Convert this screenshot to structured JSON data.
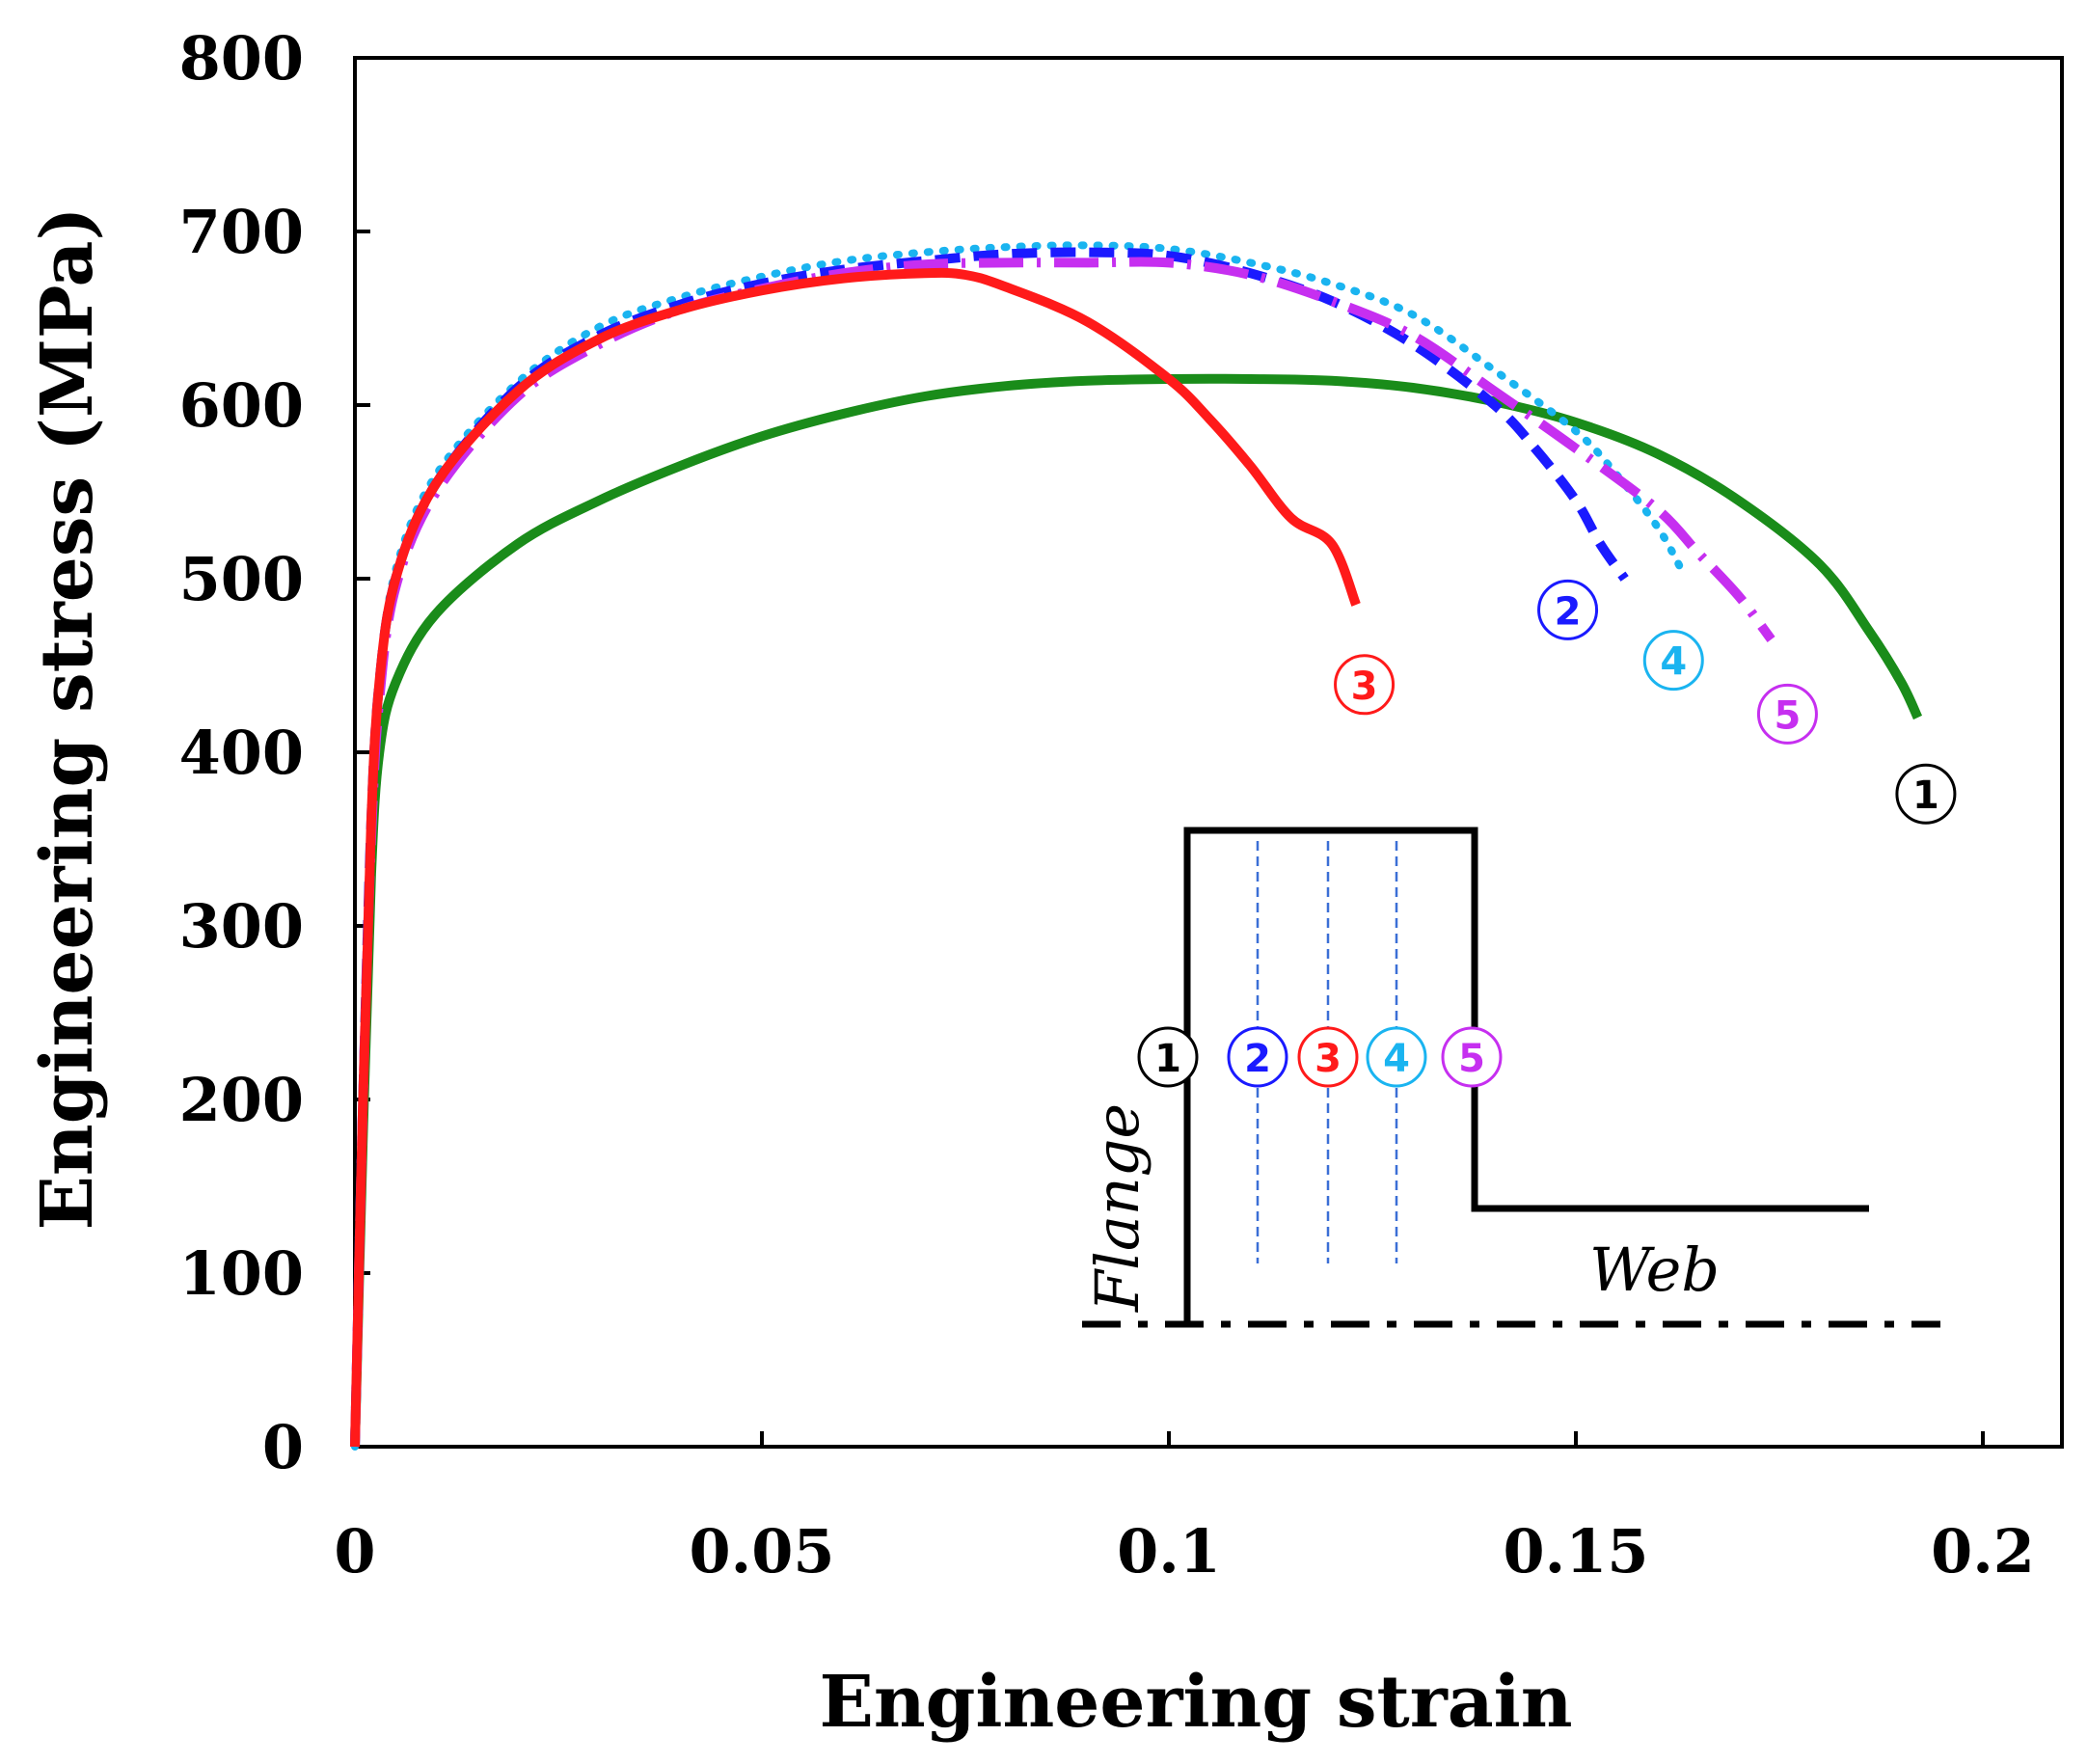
{
  "chart_data": {
    "type": "line",
    "title": "",
    "xlabel": "Engineering strain",
    "ylabel": "Engineering stress (MPa)",
    "xlim": [
      0,
      0.21
    ],
    "ylim": [
      0,
      800
    ],
    "xticks": [
      0,
      0.05,
      0.1,
      0.15,
      0.2
    ],
    "xtick_labels": [
      "0",
      "0.05",
      "0.1",
      "0.15",
      "0.2"
    ],
    "yticks": [
      0,
      100,
      200,
      300,
      400,
      500,
      600,
      700,
      800
    ],
    "ytick_labels": [
      "0",
      "100",
      "200",
      "300",
      "400",
      "500",
      "600",
      "700",
      "800"
    ],
    "series": [
      {
        "name": "1",
        "label_text": "①",
        "color": "#1a8c1a",
        "style": "solid",
        "label_color": "#000000",
        "label_at": [
          0.193,
          376
        ],
        "points": [
          [
            0,
            0
          ],
          [
            0.001,
            180
          ],
          [
            0.002,
            330
          ],
          [
            0.003,
            400
          ],
          [
            0.005,
            440
          ],
          [
            0.01,
            480
          ],
          [
            0.02,
            520
          ],
          [
            0.03,
            545
          ],
          [
            0.04,
            565
          ],
          [
            0.05,
            582
          ],
          [
            0.06,
            595
          ],
          [
            0.07,
            605
          ],
          [
            0.08,
            611
          ],
          [
            0.09,
            614
          ],
          [
            0.1,
            615
          ],
          [
            0.11,
            615
          ],
          [
            0.12,
            614
          ],
          [
            0.13,
            610
          ],
          [
            0.14,
            602
          ],
          [
            0.15,
            590
          ],
          [
            0.16,
            572
          ],
          [
            0.17,
            545
          ],
          [
            0.18,
            508
          ],
          [
            0.186,
            470
          ],
          [
            0.19,
            440
          ],
          [
            0.192,
            420
          ]
        ]
      },
      {
        "name": "2",
        "label_text": "②",
        "color": "#1a1aff",
        "style": "dashed",
        "label_color": "#1a1aff",
        "label_at": [
          0.149,
          482
        ],
        "points": [
          [
            0,
            0
          ],
          [
            0.001,
            200
          ],
          [
            0.002,
            360
          ],
          [
            0.003,
            440
          ],
          [
            0.005,
            500
          ],
          [
            0.01,
            555
          ],
          [
            0.02,
            610
          ],
          [
            0.03,
            640
          ],
          [
            0.04,
            658
          ],
          [
            0.05,
            670
          ],
          [
            0.06,
            678
          ],
          [
            0.07,
            683
          ],
          [
            0.08,
            687
          ],
          [
            0.09,
            688
          ],
          [
            0.1,
            686
          ],
          [
            0.11,
            676
          ],
          [
            0.12,
            660
          ],
          [
            0.13,
            635
          ],
          [
            0.14,
            600
          ],
          [
            0.145,
            575
          ],
          [
            0.15,
            545
          ],
          [
            0.153,
            520
          ],
          [
            0.156,
            500
          ]
        ]
      },
      {
        "name": "3",
        "label_text": "③",
        "color": "#ff1a1a",
        "style": "solid",
        "label_color": "#ff1a1a",
        "label_at": [
          0.124,
          439
        ],
        "points": [
          [
            0,
            0
          ],
          [
            0.001,
            200
          ],
          [
            0.002,
            360
          ],
          [
            0.003,
            440
          ],
          [
            0.005,
            500
          ],
          [
            0.01,
            555
          ],
          [
            0.02,
            608
          ],
          [
            0.03,
            638
          ],
          [
            0.04,
            655
          ],
          [
            0.05,
            666
          ],
          [
            0.06,
            673
          ],
          [
            0.07,
            676
          ],
          [
            0.075,
            675
          ],
          [
            0.08,
            668
          ],
          [
            0.09,
            648
          ],
          [
            0.1,
            615
          ],
          [
            0.105,
            592
          ],
          [
            0.11,
            565
          ],
          [
            0.115,
            535
          ],
          [
            0.12,
            520
          ],
          [
            0.123,
            485
          ]
        ]
      },
      {
        "name": "4",
        "label_text": "④",
        "color": "#1ab4f0",
        "style": "dotted",
        "label_color": "#1ab4f0",
        "label_at": [
          0.162,
          453
        ],
        "points": [
          [
            0,
            0
          ],
          [
            0.001,
            200
          ],
          [
            0.002,
            360
          ],
          [
            0.003,
            440
          ],
          [
            0.005,
            505
          ],
          [
            0.01,
            560
          ],
          [
            0.02,
            613
          ],
          [
            0.03,
            645
          ],
          [
            0.04,
            662
          ],
          [
            0.05,
            674
          ],
          [
            0.06,
            683
          ],
          [
            0.07,
            688
          ],
          [
            0.08,
            691
          ],
          [
            0.09,
            692
          ],
          [
            0.1,
            690
          ],
          [
            0.11,
            682
          ],
          [
            0.12,
            670
          ],
          [
            0.13,
            652
          ],
          [
            0.14,
            620
          ],
          [
            0.15,
            585
          ],
          [
            0.155,
            560
          ],
          [
            0.16,
            530
          ],
          [
            0.163,
            505
          ]
        ]
      },
      {
        "name": "5",
        "label_text": "⑤",
        "color": "#c62ff0",
        "style": "dashdot",
        "label_color": "#c62ff0",
        "label_at": [
          0.176,
          422
        ],
        "points": [
          [
            0,
            0
          ],
          [
            0.001,
            200
          ],
          [
            0.002,
            350
          ],
          [
            0.003,
            430
          ],
          [
            0.005,
            495
          ],
          [
            0.01,
            550
          ],
          [
            0.02,
            605
          ],
          [
            0.03,
            635
          ],
          [
            0.04,
            655
          ],
          [
            0.05,
            667
          ],
          [
            0.06,
            676
          ],
          [
            0.07,
            681
          ],
          [
            0.08,
            682
          ],
          [
            0.09,
            682
          ],
          [
            0.1,
            682
          ],
          [
            0.11,
            675
          ],
          [
            0.12,
            660
          ],
          [
            0.13,
            640
          ],
          [
            0.14,
            608
          ],
          [
            0.15,
            575
          ],
          [
            0.16,
            540
          ],
          [
            0.165,
            515
          ],
          [
            0.17,
            490
          ],
          [
            0.174,
            465
          ]
        ]
      }
    ],
    "inset": {
      "flange_label": "Flange",
      "web_label": "Web",
      "position_labels": [
        {
          "text": "①",
          "color": "#000000"
        },
        {
          "text": "②",
          "color": "#1a1aff"
        },
        {
          "text": "③",
          "color": "#ff1a1a"
        },
        {
          "text": "④",
          "color": "#1ab4f0"
        },
        {
          "text": "⑤",
          "color": "#c62ff0"
        }
      ]
    }
  }
}
